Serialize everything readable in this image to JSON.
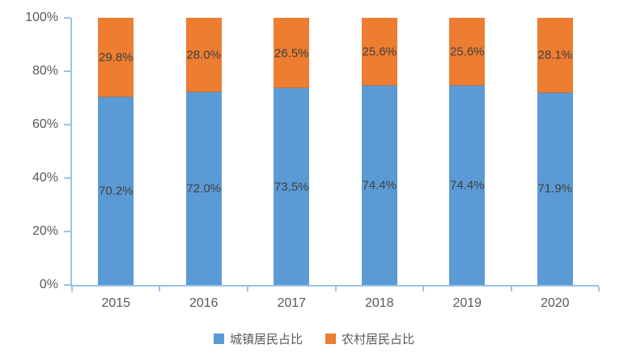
{
  "chart_data": {
    "type": "bar",
    "stacked": true,
    "title": "",
    "xlabel": "",
    "ylabel": "",
    "grid": false,
    "legend_position": "bottom",
    "categories": [
      "2015",
      "2016",
      "2017",
      "2018",
      "2019",
      "2020"
    ],
    "series": [
      {
        "name": "城镇居民占比",
        "color": "#5B9BD5",
        "values": [
          70.2,
          72.0,
          73.5,
          74.4,
          74.4,
          71.9
        ]
      },
      {
        "name": "农村居民占比",
        "color": "#ED7D31",
        "values": [
          29.8,
          28.0,
          26.5,
          25.6,
          25.6,
          28.1
        ]
      }
    ],
    "value_suffix": "%",
    "y_axis": {
      "min": 0,
      "max": 100,
      "step": 20,
      "tick_labels": [
        "0%",
        "20%",
        "40%",
        "60%",
        "80%",
        "100%"
      ]
    }
  },
  "styles": {
    "axis_line_color": "#9DC3E6",
    "axis_label_color": "#595959",
    "data_label_color": "#404040",
    "background": "#FFFFFF"
  }
}
